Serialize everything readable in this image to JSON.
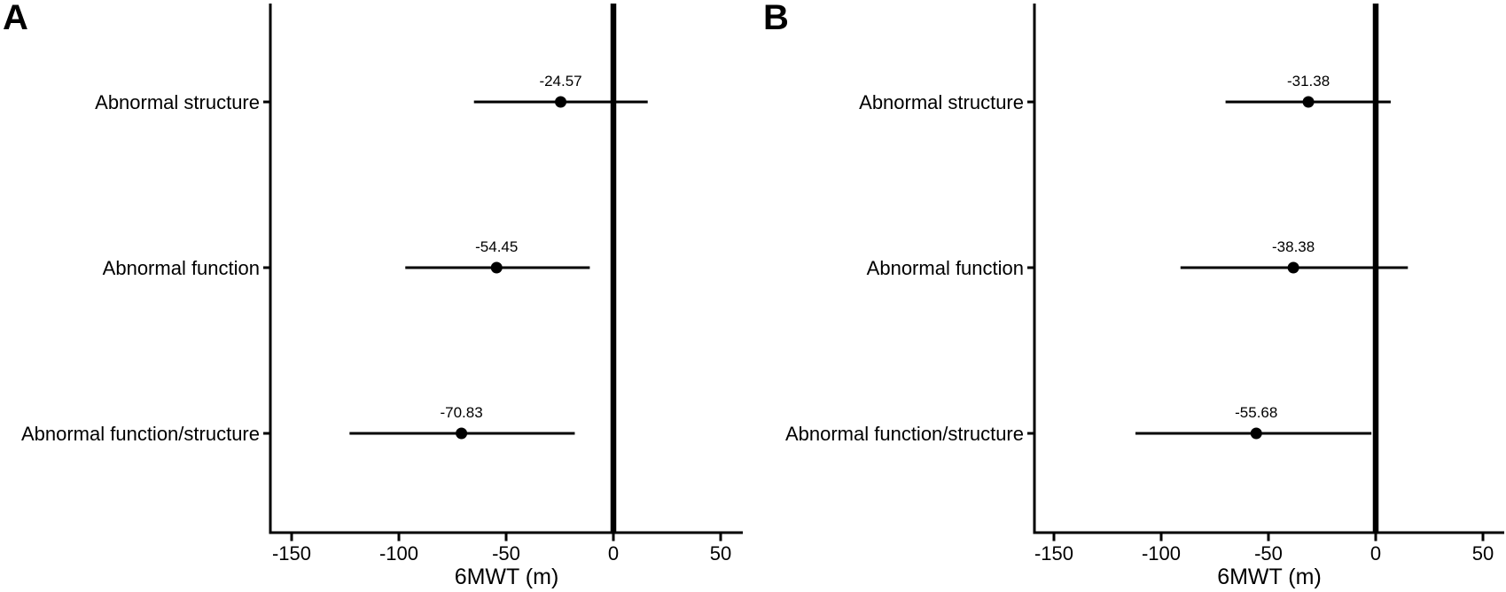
{
  "figure": {
    "description": "Two-panel forest plot of effect estimates with 95% confidence intervals on 6-minute walk test distance",
    "background_color": "#ffffff",
    "foreground_color": "#000000"
  },
  "chart_data": [
    {
      "type": "scatter",
      "subtype": "forest-plot",
      "panel_label": "A",
      "xlabel": "6MWT (m)",
      "x_ticks": [
        -150,
        -100,
        -50,
        0,
        50
      ],
      "xlim": [
        -160,
        60
      ],
      "reference_line_x": 0,
      "grid": "off",
      "categories": [
        "Abnormal structure",
        "Abnormal function",
        "Abnormal function/structure"
      ],
      "rows": [
        {
          "category": "Abnormal structure",
          "estimate": -24.57,
          "estimate_label": "-24.57",
          "ci_low": -65,
          "ci_high": 16
        },
        {
          "category": "Abnormal function",
          "estimate": -54.45,
          "estimate_label": "-54.45",
          "ci_low": -97,
          "ci_high": -11
        },
        {
          "category": "Abnormal function/structure",
          "estimate": -70.83,
          "estimate_label": "-70.83",
          "ci_low": -123,
          "ci_high": -18
        }
      ]
    },
    {
      "type": "scatter",
      "subtype": "forest-plot",
      "panel_label": "B",
      "xlabel": "6MWT (m)",
      "x_ticks": [
        -150,
        -100,
        -50,
        0,
        50
      ],
      "xlim": [
        -160,
        60
      ],
      "reference_line_x": 0,
      "grid": "off",
      "categories": [
        "Abnormal structure",
        "Abnormal function",
        "Abnormal function/structure"
      ],
      "rows": [
        {
          "category": "Abnormal structure",
          "estimate": -31.38,
          "estimate_label": "-31.38",
          "ci_low": -70,
          "ci_high": 7
        },
        {
          "category": "Abnormal function",
          "estimate": -38.38,
          "estimate_label": "-38.38",
          "ci_low": -91,
          "ci_high": 15
        },
        {
          "category": "Abnormal function/structure",
          "estimate": -55.68,
          "estimate_label": "-55.68",
          "ci_low": -112,
          "ci_high": -2
        }
      ]
    }
  ]
}
